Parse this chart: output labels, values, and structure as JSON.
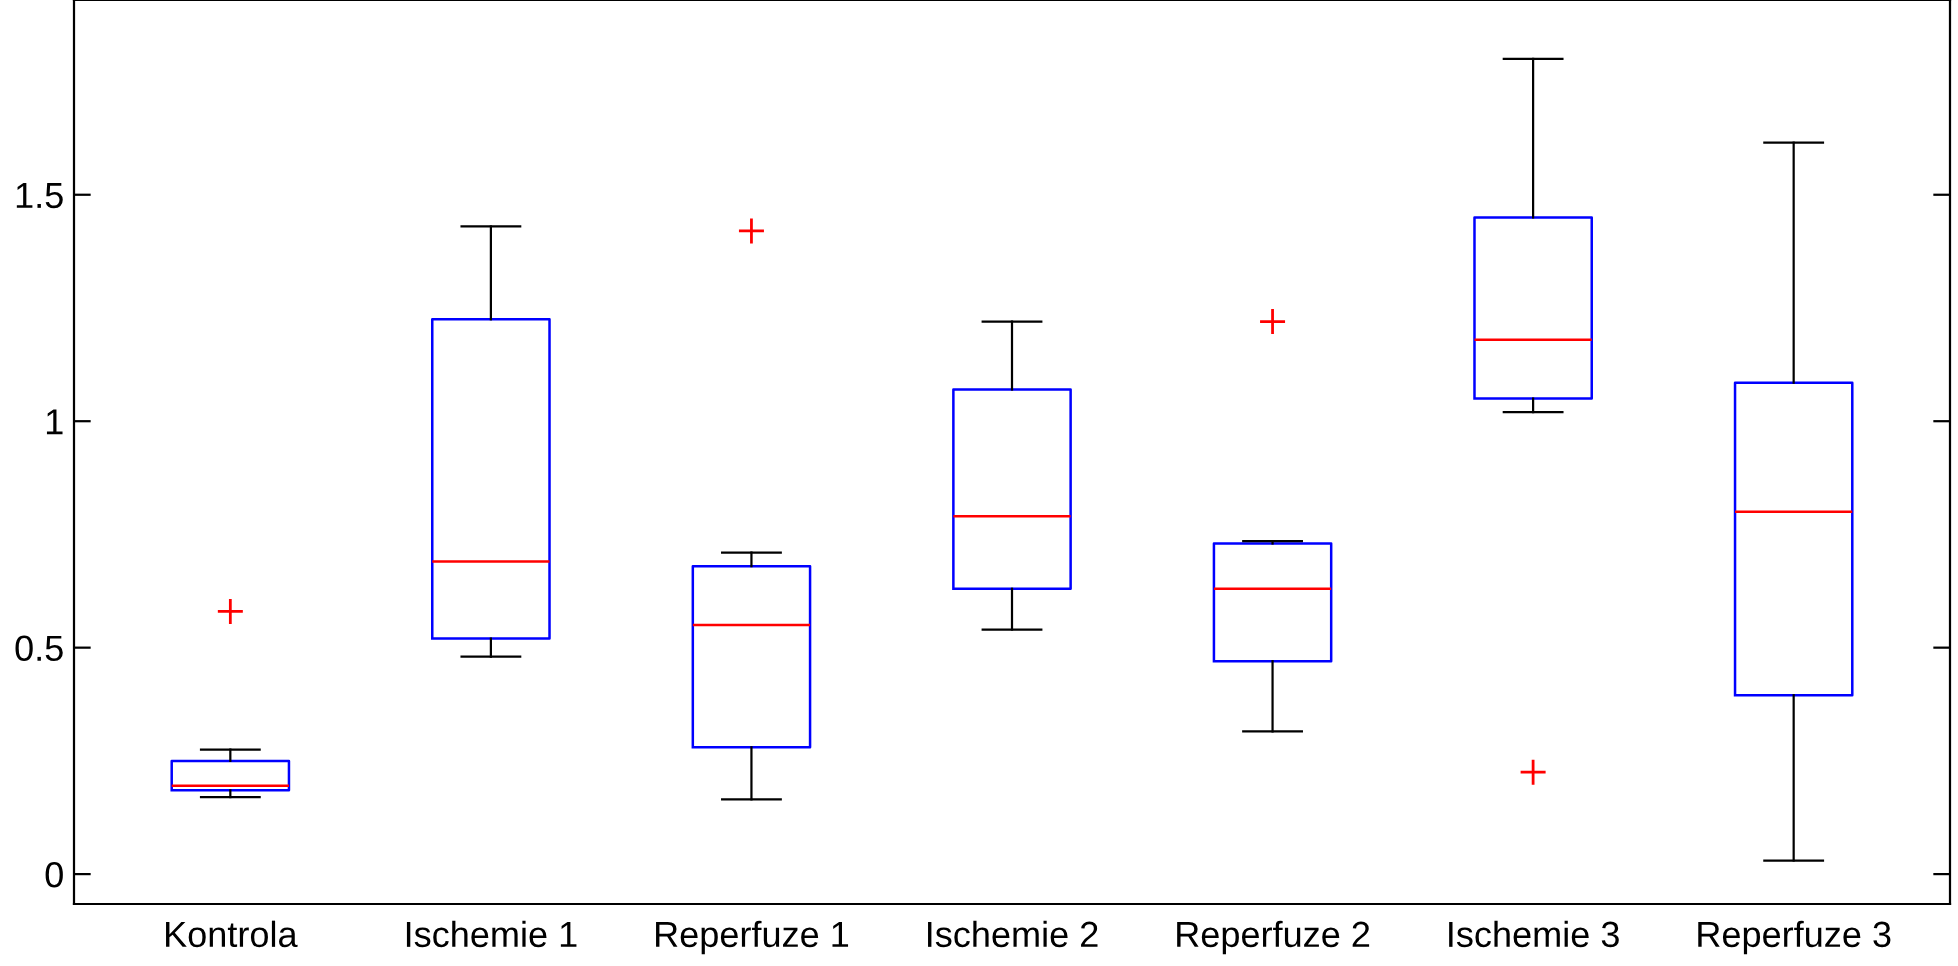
{
  "chart_data": {
    "type": "box",
    "categories": [
      "Kontrola",
      "Ischemie 1",
      "Reperfuze 1",
      "Ischemie 2",
      "Reperfuze 2",
      "Ischemie 3",
      "Reperfuze 3"
    ],
    "boxes": [
      {
        "low": 0.17,
        "q1": 0.185,
        "median": 0.195,
        "q3": 0.25,
        "high": 0.275,
        "outliers": [
          0.58
        ]
      },
      {
        "low": 0.48,
        "q1": 0.52,
        "median": 0.69,
        "q3": 1.225,
        "high": 1.43
      },
      {
        "low": 0.165,
        "q1": 0.28,
        "median": 0.55,
        "q3": 0.68,
        "high": 0.71,
        "outliers": [
          1.42
        ]
      },
      {
        "low": 0.54,
        "q1": 0.63,
        "median": 0.79,
        "q3": 1.07,
        "high": 1.22
      },
      {
        "low": 0.315,
        "q1": 0.47,
        "median": 0.63,
        "q3": 0.73,
        "high": 0.735,
        "outliers": [
          1.22
        ]
      },
      {
        "low": 1.02,
        "q1": 1.05,
        "median": 1.18,
        "q3": 1.45,
        "high": 1.8,
        "outliers": [
          0.225
        ]
      },
      {
        "low": 0.03,
        "q1": 0.395,
        "median": 0.8,
        "q3": 1.085,
        "high": 1.615
      }
    ],
    "color": "#0000ff",
    "marker": "cross",
    "ylim": [
      -0.066,
      1.93
    ],
    "yticks": [
      0,
      0.5,
      1,
      1.5
    ],
    "grid": false,
    "legend": false
  }
}
